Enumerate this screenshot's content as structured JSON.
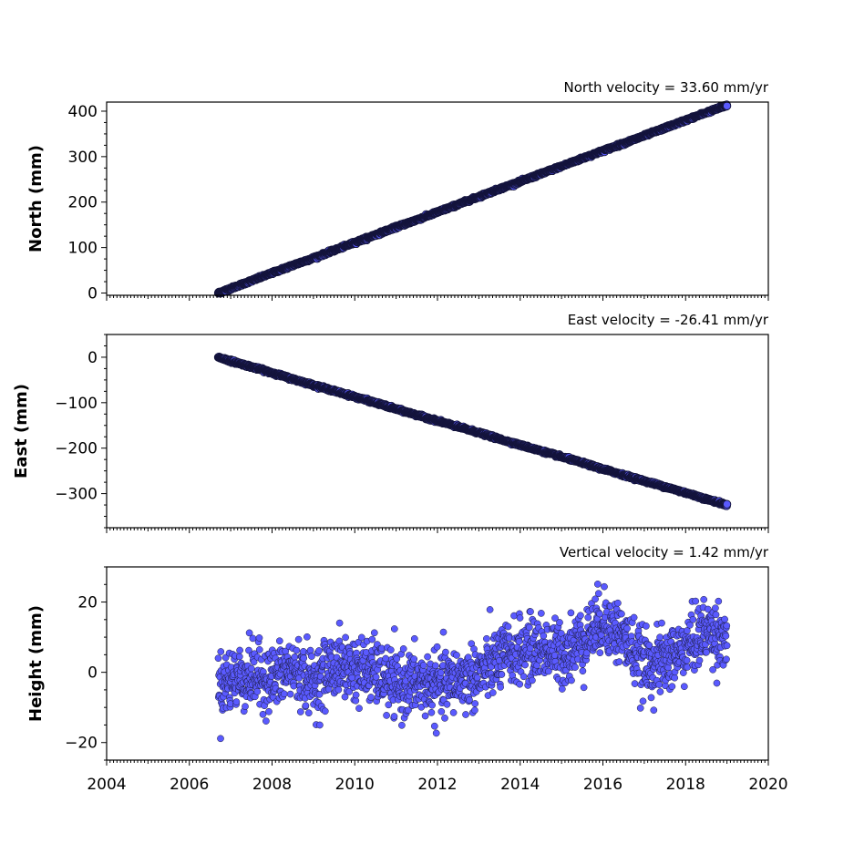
{
  "chart_data": [
    {
      "type": "scatter",
      "id": "north",
      "title": "North velocity = 33.60 mm/yr",
      "ylabel": "North (mm)",
      "xlim": [
        2004,
        2020
      ],
      "ylim": [
        -5,
        420
      ],
      "yticks": [
        0,
        100,
        200,
        300,
        400
      ],
      "ytick_labels": [
        "0",
        "100",
        "200",
        "300",
        "400"
      ],
      "x": [
        2006.7,
        2007.0,
        2007.5,
        2008.0,
        2008.5,
        2009.0,
        2009.5,
        2010.0,
        2010.5,
        2011.0,
        2011.5,
        2012.0,
        2012.5,
        2013.0,
        2013.5,
        2014.0,
        2014.5,
        2015.0,
        2015.5,
        2016.0,
        2016.5,
        2017.0,
        2017.5,
        2018.0,
        2018.5,
        2019.0
      ],
      "y": [
        0,
        10,
        27,
        44,
        61,
        77,
        94,
        111,
        128,
        145,
        161,
        178,
        195,
        212,
        229,
        245,
        262,
        279,
        296,
        313,
        329,
        346,
        363,
        380,
        397,
        413
      ],
      "marker_color": "#5a5aff"
    },
    {
      "type": "scatter",
      "id": "east",
      "title": "East velocity = -26.41 mm/yr",
      "ylabel": "East (mm)",
      "xlim": [
        2004,
        2020
      ],
      "ylim": [
        -375,
        50
      ],
      "yticks": [
        0,
        -100,
        -200,
        -300
      ],
      "ytick_labels": [
        "0",
        "−100",
        "−200",
        "−300"
      ],
      "x": [
        2006.7,
        2007.0,
        2007.5,
        2008.0,
        2008.5,
        2009.0,
        2009.5,
        2010.0,
        2010.5,
        2011.0,
        2011.5,
        2012.0,
        2012.5,
        2013.0,
        2013.5,
        2014.0,
        2014.5,
        2015.0,
        2015.5,
        2016.0,
        2016.5,
        2017.0,
        2017.5,
        2018.0,
        2018.5,
        2019.0
      ],
      "y": [
        0,
        -8,
        -21,
        -34,
        -48,
        -61,
        -74,
        -87,
        -100,
        -114,
        -127,
        -140,
        -153,
        -166,
        -180,
        -193,
        -206,
        -219,
        -232,
        -246,
        -259,
        -272,
        -285,
        -298,
        -312,
        -325
      ],
      "marker_color": "#5a5aff"
    },
    {
      "type": "scatter",
      "id": "height",
      "title": "Vertical velocity = 1.42 mm/yr",
      "ylabel": "Height (mm)",
      "xlim": [
        2004,
        2020
      ],
      "ylim": [
        -25,
        30
      ],
      "yticks": [
        20,
        0,
        -20
      ],
      "ytick_labels": [
        "20",
        "0",
        "−20"
      ],
      "xticks": [
        2004,
        2006,
        2008,
        2010,
        2012,
        2014,
        2016,
        2018,
        2020
      ],
      "xtick_labels": [
        "2004",
        "2006",
        "2008",
        "2010",
        "2012",
        "2014",
        "2016",
        "2018",
        "2020"
      ],
      "x": [
        2006.7,
        2007.0,
        2007.5,
        2008.0,
        2008.5,
        2009.0,
        2009.5,
        2010.0,
        2010.5,
        2011.0,
        2011.5,
        2012.0,
        2012.5,
        2013.0,
        2013.5,
        2014.0,
        2014.5,
        2015.0,
        2015.5,
        2016.0,
        2016.5,
        2017.0,
        2017.5,
        2018.0,
        2018.5,
        2019.0
      ],
      "y": [
        -4,
        -2,
        -1,
        -2,
        1,
        -3,
        2,
        1,
        0,
        -4,
        -3,
        -4,
        -2,
        -1,
        4,
        6,
        7,
        5,
        9,
        15,
        10,
        2,
        3,
        7,
        12,
        10
      ],
      "scatter_spread": 6,
      "marker_color": "#5a5aff"
    }
  ]
}
